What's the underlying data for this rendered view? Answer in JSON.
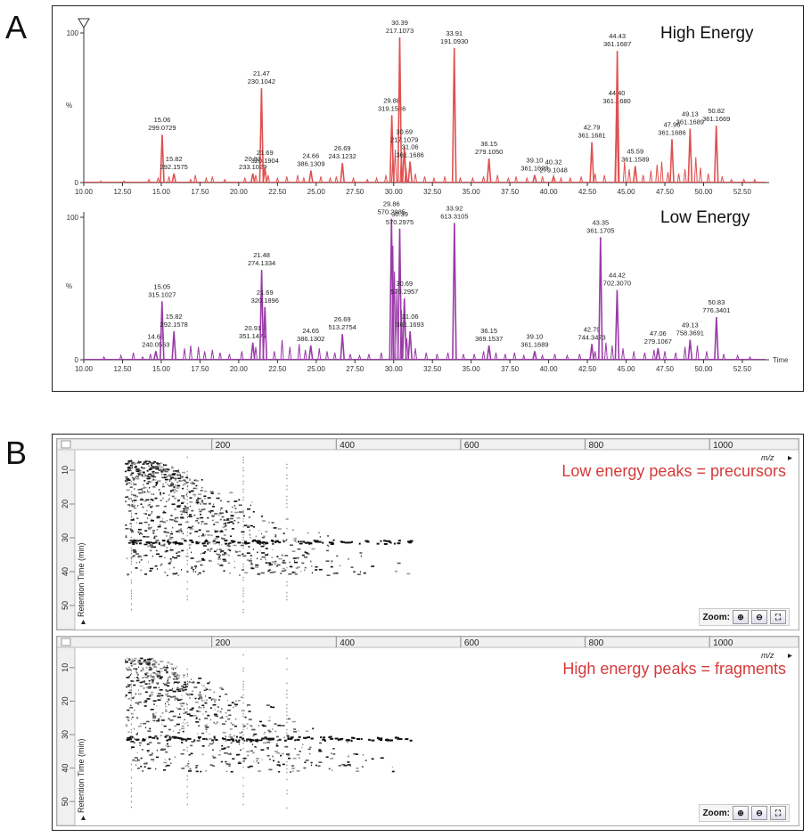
{
  "panels": {
    "a_letter": "A",
    "b_letter": "B"
  },
  "chart_data": [
    {
      "type": "line",
      "title": "High Energy",
      "color": "#e05050",
      "xlim": [
        10,
        54
      ],
      "ylim": [
        0,
        100
      ],
      "yticks": [
        "0",
        "100"
      ],
      "ylabel": "%",
      "xticks": [
        "10.00",
        "12.50",
        "15.00",
        "17.50",
        "20.00",
        "22.50",
        "25.00",
        "27.50",
        "30.00",
        "32.50",
        "35.00",
        "37.50",
        "40.00",
        "42.50",
        "45.00",
        "47.50",
        "50.00",
        "52.50"
      ],
      "peaks": [
        {
          "x": 15.06,
          "y": 32,
          "label1": "15.06",
          "label2": "299.0729"
        },
        {
          "x": 15.82,
          "y": 6,
          "label1": "15.82",
          "label2": "292.1575"
        },
        {
          "x": 20.91,
          "y": 6,
          "label1": "20.91",
          "label2": "233.1029"
        },
        {
          "x": 21.47,
          "y": 63,
          "label1": "21.47",
          "label2": "230.1042"
        },
        {
          "x": 21.69,
          "y": 10,
          "label1": "21.69",
          "label2": "320.1904"
        },
        {
          "x": 24.66,
          "y": 8,
          "label1": "24.66",
          "label2": "386.1309"
        },
        {
          "x": 26.69,
          "y": 13,
          "label1": "26.69",
          "label2": "243.1232"
        },
        {
          "x": 29.88,
          "y": 45,
          "label1": "29.88",
          "label2": "319.1586"
        },
        {
          "x": 30.39,
          "y": 97,
          "label1": "30.39",
          "label2": "217.1073"
        },
        {
          "x": 30.69,
          "y": 24,
          "label1": "30.69",
          "label2": "217.1079"
        },
        {
          "x": 31.06,
          "y": 14,
          "label1": "31.06",
          "label2": "361.1686"
        },
        {
          "x": 33.91,
          "y": 90,
          "label1": "33.91",
          "label2": "191.0930"
        },
        {
          "x": 36.15,
          "y": 16,
          "label1": "36.15",
          "label2": "279.1050"
        },
        {
          "x": 39.1,
          "y": 5,
          "label1": "39.10",
          "label2": "361.1693"
        },
        {
          "x": 40.32,
          "y": 4,
          "label1": "40.32",
          "label2": "279.1048"
        },
        {
          "x": 42.79,
          "y": 27,
          "label1": "42.79",
          "label2": "361.1681"
        },
        {
          "x": 44.4,
          "y": 50,
          "label1": "44.40",
          "label2": "361.1680"
        },
        {
          "x": 44.43,
          "y": 88,
          "label1": "44.43",
          "label2": "361.1687"
        },
        {
          "x": 45.59,
          "y": 11,
          "label1": "45.59",
          "label2": "361.1589"
        },
        {
          "x": 47.96,
          "y": 29,
          "label1": "47.96",
          "label2": "361.1686"
        },
        {
          "x": 49.13,
          "y": 36,
          "label1": "49.13",
          "label2": "361.1689"
        },
        {
          "x": 50.82,
          "y": 38,
          "label1": "50.82",
          "label2": "361.1669"
        }
      ],
      "minor": [
        [
          11.1,
          1
        ],
        [
          12.6,
          1
        ],
        [
          14.2,
          2
        ],
        [
          14.8,
          3
        ],
        [
          15.5,
          4
        ],
        [
          16.9,
          2
        ],
        [
          17.2,
          5
        ],
        [
          17.9,
          3
        ],
        [
          18.3,
          4
        ],
        [
          19.1,
          2
        ],
        [
          20.4,
          3
        ],
        [
          21.1,
          5
        ],
        [
          21.9,
          5
        ],
        [
          22.5,
          3
        ],
        [
          23.1,
          4
        ],
        [
          23.8,
          5
        ],
        [
          24.2,
          3
        ],
        [
          25.3,
          4
        ],
        [
          25.9,
          3
        ],
        [
          26.3,
          4
        ],
        [
          27.4,
          3
        ],
        [
          28.3,
          2
        ],
        [
          28.9,
          3
        ],
        [
          29.5,
          5
        ],
        [
          29.95,
          18
        ],
        [
          30.1,
          22
        ],
        [
          30.5,
          20
        ],
        [
          30.8,
          10
        ],
        [
          31.4,
          6
        ],
        [
          32.0,
          4
        ],
        [
          32.6,
          3
        ],
        [
          33.3,
          4
        ],
        [
          34.3,
          3
        ],
        [
          35.1,
          3
        ],
        [
          35.8,
          4
        ],
        [
          36.7,
          5
        ],
        [
          37.4,
          3
        ],
        [
          37.9,
          4
        ],
        [
          38.6,
          3
        ],
        [
          39.6,
          4
        ],
        [
          40.8,
          3
        ],
        [
          41.4,
          3
        ],
        [
          42.1,
          4
        ],
        [
          43.0,
          6
        ],
        [
          43.6,
          5
        ],
        [
          44.9,
          14
        ],
        [
          45.2,
          9
        ],
        [
          46.1,
          5
        ],
        [
          46.6,
          8
        ],
        [
          47.0,
          12
        ],
        [
          47.3,
          14
        ],
        [
          47.7,
          7
        ],
        [
          48.4,
          6
        ],
        [
          48.8,
          9
        ],
        [
          49.5,
          17
        ],
        [
          49.8,
          10
        ],
        [
          50.3,
          6
        ],
        [
          51.2,
          4
        ],
        [
          51.8,
          2
        ],
        [
          52.6,
          2
        ],
        [
          53.3,
          2
        ]
      ]
    },
    {
      "type": "line",
      "title": "Low Energy",
      "color": "#9a3aa8",
      "xlim": [
        10,
        54
      ],
      "ylim": [
        0,
        100
      ],
      "yticks": [
        "0",
        "100"
      ],
      "ylabel": "%",
      "xlabel": "Time",
      "xticks": [
        "10.00",
        "12.50",
        "15.00",
        "17.50",
        "20.00",
        "22.50",
        "25.00",
        "27.50",
        "30.00",
        "32.50",
        "35.00",
        "37.50",
        "40.00",
        "42.50",
        "45.00",
        "47.50",
        "50.00",
        "52.50"
      ],
      "peaks": [
        {
          "x": 14.65,
          "y": 6,
          "label1": "14.65",
          "label2": "240.0563"
        },
        {
          "x": 15.05,
          "y": 41,
          "label1": "15.05",
          "label2": "315.1027"
        },
        {
          "x": 15.82,
          "y": 20,
          "label1": "15.82",
          "label2": "292.1578"
        },
        {
          "x": 20.91,
          "y": 12,
          "label1": "20.91",
          "label2": "351.1477"
        },
        {
          "x": 21.48,
          "y": 63,
          "label1": "21.48",
          "label2": "274.1334"
        },
        {
          "x": 21.69,
          "y": 37,
          "label1": "21.69",
          "label2": "320.1896"
        },
        {
          "x": 24.65,
          "y": 10,
          "label1": "24.65",
          "label2": "386.1302"
        },
        {
          "x": 26.69,
          "y": 18,
          "label1": "26.69",
          "label2": "513.2754"
        },
        {
          "x": 29.86,
          "y": 99,
          "label1": "29.86",
          "label2": "570.2985"
        },
        {
          "x": 30.39,
          "y": 92,
          "label1": "30.39",
          "label2": "570.2975"
        },
        {
          "x": 30.69,
          "y": 43,
          "label1": "30.69",
          "label2": "570.2957"
        },
        {
          "x": 31.06,
          "y": 20,
          "label1": "31.06",
          "label2": "361.1693"
        },
        {
          "x": 33.92,
          "y": 96,
          "label1": "33.92",
          "label2": "613.3105"
        },
        {
          "x": 36.15,
          "y": 10,
          "label1": "36.15",
          "label2": "369.1537"
        },
        {
          "x": 39.1,
          "y": 6,
          "label1": "39.10",
          "label2": "361.1689"
        },
        {
          "x": 42.79,
          "y": 11,
          "label1": "42.79",
          "label2": "744.3473"
        },
        {
          "x": 43.35,
          "y": 86,
          "label1": "43.35",
          "label2": "361.1705"
        },
        {
          "x": 44.42,
          "y": 49,
          "label1": "44.42",
          "label2": "702.3070"
        },
        {
          "x": 47.06,
          "y": 8,
          "label1": "47.06",
          "label2": "279.1067"
        },
        {
          "x": 49.13,
          "y": 14,
          "label1": "49.13",
          "label2": "758.3691"
        },
        {
          "x": 50.83,
          "y": 30,
          "label1": "50.83",
          "label2": "776.3401"
        }
      ],
      "minor": [
        [
          11.3,
          2
        ],
        [
          12.4,
          3
        ],
        [
          13.2,
          5
        ],
        [
          13.8,
          2
        ],
        [
          14.3,
          4
        ],
        [
          16.5,
          8
        ],
        [
          16.9,
          10
        ],
        [
          17.4,
          9
        ],
        [
          17.8,
          6
        ],
        [
          18.3,
          7
        ],
        [
          18.8,
          5
        ],
        [
          19.4,
          4
        ],
        [
          20.2,
          6
        ],
        [
          21.1,
          9
        ],
        [
          22.3,
          6
        ],
        [
          22.8,
          14
        ],
        [
          23.3,
          9
        ],
        [
          23.9,
          11
        ],
        [
          24.3,
          7
        ],
        [
          25.2,
          8
        ],
        [
          25.7,
          6
        ],
        [
          26.2,
          5
        ],
        [
          27.2,
          4
        ],
        [
          27.8,
          3
        ],
        [
          28.4,
          4
        ],
        [
          29.2,
          5
        ],
        [
          29.95,
          80
        ],
        [
          30.05,
          62
        ],
        [
          30.2,
          50
        ],
        [
          30.5,
          35
        ],
        [
          30.85,
          15
        ],
        [
          31.4,
          8
        ],
        [
          32.1,
          5
        ],
        [
          32.8,
          4
        ],
        [
          33.5,
          5
        ],
        [
          34.5,
          4
        ],
        [
          35.2,
          4
        ],
        [
          35.8,
          6
        ],
        [
          36.6,
          5
        ],
        [
          37.2,
          4
        ],
        [
          37.8,
          5
        ],
        [
          38.4,
          3
        ],
        [
          39.6,
          3
        ],
        [
          40.4,
          4
        ],
        [
          41.2,
          3
        ],
        [
          42.0,
          4
        ],
        [
          43.0,
          6
        ],
        [
          43.7,
          12
        ],
        [
          44.1,
          10
        ],
        [
          44.8,
          8
        ],
        [
          45.5,
          6
        ],
        [
          46.2,
          5
        ],
        [
          46.8,
          7
        ],
        [
          47.5,
          6
        ],
        [
          48.2,
          5
        ],
        [
          48.8,
          9
        ],
        [
          49.6,
          10
        ],
        [
          50.2,
          6
        ],
        [
          51.3,
          4
        ],
        [
          52.2,
          3
        ],
        [
          53.0,
          2
        ]
      ]
    }
  ],
  "heatmaps": [
    {
      "title": "Low energy peaks = precursors",
      "xticks": [
        "200",
        "400",
        "600",
        "800",
        "1000"
      ],
      "yticks": [
        "10",
        "20",
        "30",
        "40",
        "50"
      ],
      "xaxis_label": "m/z",
      "yaxis_label": "Retention Time (min)",
      "zoom_label": "Zoom:",
      "xlim": [
        0,
        1100
      ],
      "ylim": [
        5,
        55
      ],
      "seed": 7,
      "density": 900,
      "band_rt": 31
    },
    {
      "title": "High energy peaks = fragments",
      "xticks": [
        "200",
        "400",
        "600",
        "800",
        "1000"
      ],
      "yticks": [
        "10",
        "20",
        "30",
        "40",
        "50"
      ],
      "xaxis_label": "m/z",
      "yaxis_label": "Retention Time (min)",
      "zoom_label": "Zoom:",
      "xlim": [
        0,
        1100
      ],
      "ylim": [
        5,
        55
      ],
      "seed": 13,
      "density": 750,
      "band_rt": 31
    }
  ],
  "icons": {
    "zoom_in": "zoom-in-icon",
    "zoom_out": "zoom-out-icon",
    "fit": "fit-icon"
  }
}
